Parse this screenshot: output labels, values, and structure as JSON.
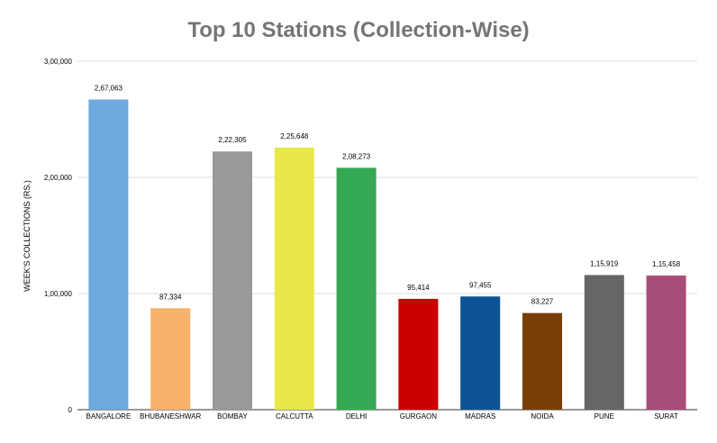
{
  "chart_data": {
    "type": "bar",
    "title": "Top 10 Stations (Collection-Wise)",
    "ylabel": "WEEK'S COLLECTIONS (RS.)",
    "xlabel": "",
    "ylim": [
      0,
      300000
    ],
    "yticks": [
      0,
      100000,
      200000,
      300000
    ],
    "ytick_labels": [
      "0",
      "1,00,000",
      "2,00,000",
      "3,00,000"
    ],
    "grid": true,
    "legend": "none",
    "categories": [
      "BANGALORE",
      "BHUBANESHWAR",
      "BOMBAY",
      "CALCUTTA",
      "DELHI",
      "GURGAON",
      "MADRAS",
      "NOIDA",
      "PUNE",
      "SURAT"
    ],
    "values": [
      267063,
      87334,
      222305,
      225648,
      208273,
      95414,
      97455,
      83227,
      115919,
      115458
    ],
    "value_labels": [
      "2,67,063",
      "87,334",
      "2,22,305",
      "2,25,648",
      "2,08,273",
      "95,414",
      "97,455",
      "83,227",
      "1,15,919",
      "1,15,458"
    ],
    "colors": [
      "#6fa8dc",
      "#f6b26b",
      "#999999",
      "#e8e84a",
      "#34a853",
      "#cc0000",
      "#0b5394",
      "#783f04",
      "#666666",
      "#a64d79"
    ]
  }
}
